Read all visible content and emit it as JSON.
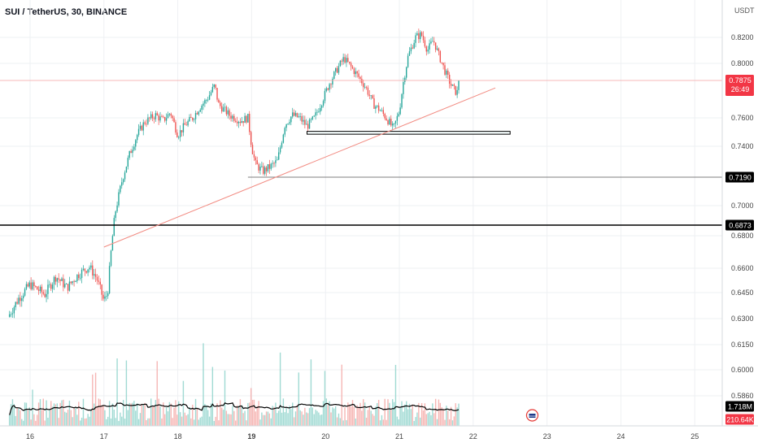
{
  "header": {
    "title": "SUI / TetherUS, 30, BINANCE",
    "unit": "USDT"
  },
  "colors": {
    "up": "#26a69a",
    "down": "#ef5350",
    "trendline": "#f28b82",
    "ma": "#000000",
    "price_tag": "#f23645"
  },
  "chart_data": {
    "type": "candlestick",
    "title": "SUI / TetherUS, 30, BINANCE",
    "y_unit": "USDT",
    "y_ticks": [
      "0.8200",
      "0.8000",
      "0.7600",
      "0.7400",
      "0.7000",
      "0.6800",
      "0.6600",
      "0.6450",
      "0.6300",
      "0.6150",
      "0.6000",
      "0.5860"
    ],
    "x_ticks": [
      "16",
      "17",
      "18",
      "19",
      "20",
      "21",
      "22",
      "23",
      "24",
      "25"
    ],
    "last_price": {
      "value": "0.7875",
      "countdown": "26:49"
    },
    "levels": [
      {
        "label": "0.7190",
        "value": 0.719
      },
      {
        "label": "0.6873",
        "value": 0.6873
      }
    ],
    "support_zone": {
      "low": 0.7485,
      "high": 0.7505,
      "from_day": 19.75,
      "to_day": 22.5
    },
    "trendline": {
      "from": {
        "day": 17.0,
        "value": 0.673
      },
      "to": {
        "day": 22.3,
        "value": 0.782
      }
    },
    "volume": {
      "value": "1.718M",
      "ma_value": "210.64K"
    },
    "path": [
      [
        15.7,
        0.631
      ],
      [
        15.85,
        0.642
      ],
      [
        16.0,
        0.65
      ],
      [
        16.2,
        0.644
      ],
      [
        16.35,
        0.655
      ],
      [
        16.5,
        0.648
      ],
      [
        16.65,
        0.656
      ],
      [
        16.8,
        0.661
      ],
      [
        16.9,
        0.654
      ],
      [
        17.0,
        0.64
      ],
      [
        17.05,
        0.645
      ],
      [
        17.1,
        0.672
      ],
      [
        17.15,
        0.695
      ],
      [
        17.25,
        0.718
      ],
      [
        17.35,
        0.735
      ],
      [
        17.45,
        0.748
      ],
      [
        17.55,
        0.757
      ],
      [
        17.7,
        0.762
      ],
      [
        17.8,
        0.758
      ],
      [
        17.9,
        0.764
      ],
      [
        18.0,
        0.748
      ],
      [
        18.1,
        0.755
      ],
      [
        18.2,
        0.76
      ],
      [
        18.3,
        0.768
      ],
      [
        18.4,
        0.774
      ],
      [
        18.5,
        0.784
      ],
      [
        18.55,
        0.77
      ],
      [
        18.7,
        0.762
      ],
      [
        18.85,
        0.758
      ],
      [
        18.95,
        0.76
      ],
      [
        19.0,
        0.74
      ],
      [
        19.05,
        0.728
      ],
      [
        19.15,
        0.723
      ],
      [
        19.25,
        0.726
      ],
      [
        19.35,
        0.73
      ],
      [
        19.45,
        0.755
      ],
      [
        19.55,
        0.762
      ],
      [
        19.65,
        0.76
      ],
      [
        19.75,
        0.754
      ],
      [
        19.85,
        0.76
      ],
      [
        19.95,
        0.772
      ],
      [
        20.05,
        0.785
      ],
      [
        20.15,
        0.795
      ],
      [
        20.25,
        0.804
      ],
      [
        20.35,
        0.797
      ],
      [
        20.45,
        0.79
      ],
      [
        20.55,
        0.782
      ],
      [
        20.65,
        0.77
      ],
      [
        20.75,
        0.765
      ],
      [
        20.85,
        0.758
      ],
      [
        20.92,
        0.752
      ],
      [
        21.0,
        0.765
      ],
      [
        21.05,
        0.785
      ],
      [
        21.12,
        0.806
      ],
      [
        21.22,
        0.82
      ],
      [
        21.3,
        0.822
      ],
      [
        21.38,
        0.81
      ],
      [
        21.46,
        0.818
      ],
      [
        21.55,
        0.804
      ],
      [
        21.62,
        0.794
      ],
      [
        21.7,
        0.784
      ],
      [
        21.78,
        0.778
      ],
      [
        21.82,
        0.7875
      ]
    ]
  }
}
